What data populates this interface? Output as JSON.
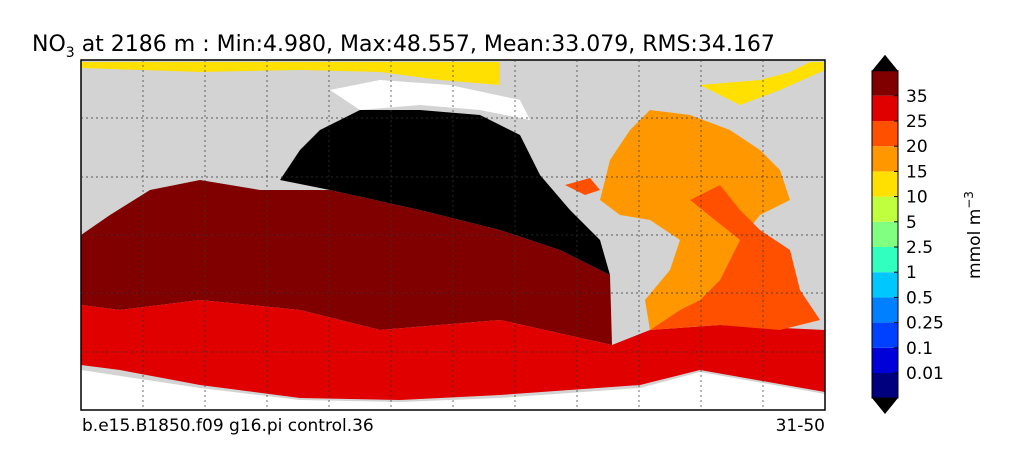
{
  "title": {
    "main": "NO",
    "sub": "3",
    "rest": " at 2186 m : Min:4.980, Max:48.557, Mean:33.079, RMS:34.167"
  },
  "footer": {
    "left": "b.e15.B1850.f09 g16.pi control.36",
    "right": "31-50"
  },
  "colorbar": {
    "label": "mmol m",
    "label_sup": "−3",
    "levels": [
      0.01,
      0.1,
      0.25,
      0.5,
      1,
      2.5,
      5,
      10,
      15,
      20,
      25,
      35
    ],
    "colors": [
      "#00007f",
      "#0000d8",
      "#0040ff",
      "#0080ff",
      "#00c8ff",
      "#30ffc0",
      "#80ff80",
      "#c0ff40",
      "#ffe000",
      "#ff9800",
      "#ff5000",
      "#e00000",
      "#800000"
    ],
    "extend_color": "#000000"
  }
}
